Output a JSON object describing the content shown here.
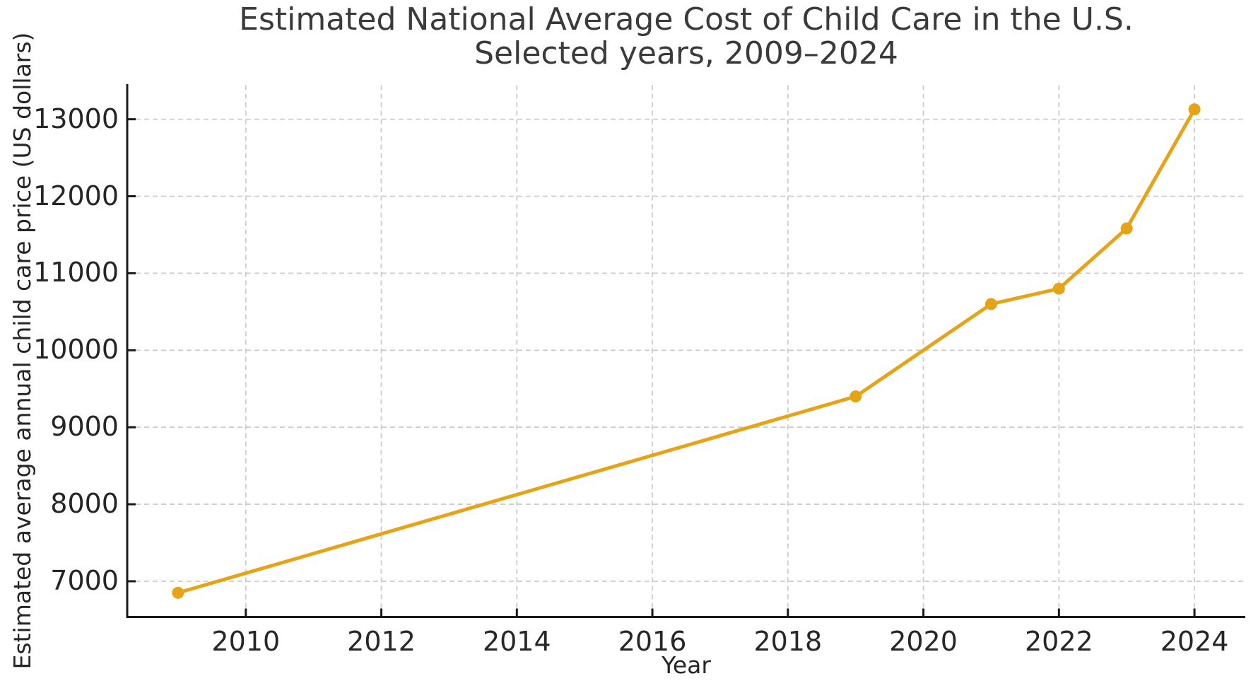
{
  "chart_data": {
    "type": "line",
    "title": "Estimated National Average Cost of Child Care in the U.S.",
    "subtitle": "Selected years, 2009–2024",
    "xlabel": "Year",
    "ylabel": "Estimated average annual child care price (US dollars)",
    "x": [
      2009,
      2019,
      2021,
      2022,
      2023,
      2024
    ],
    "series": [
      {
        "name": "Estimated average annual child care price (US dollars)",
        "values": [
          6850,
          9400,
          10600,
          10800,
          11582,
          13128
        ]
      }
    ],
    "xticks": [
      2010,
      2012,
      2014,
      2016,
      2018,
      2020,
      2022,
      2024
    ],
    "yticks": [
      7000,
      8000,
      9000,
      10000,
      11000,
      12000,
      13000
    ],
    "xlim": [
      2008.25,
      2024.75
    ],
    "ylim": [
      6536,
      13442
    ],
    "grid": true,
    "grid_style": "dashed",
    "legend": false,
    "marker": "circle",
    "colors": {
      "line": "#E6A317",
      "grid": "#cccccc",
      "axis": "#1a1a1a",
      "tick_text": "#262626",
      "title_text": "#3a3a3a"
    }
  }
}
